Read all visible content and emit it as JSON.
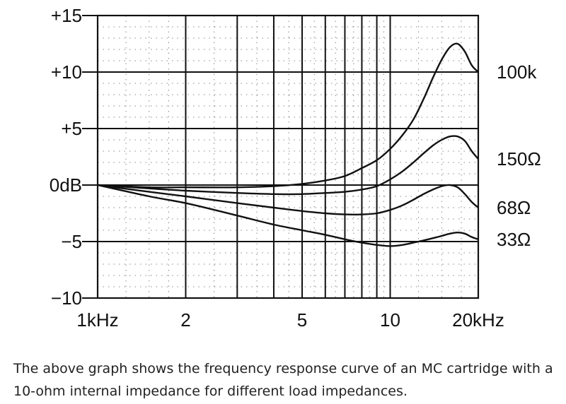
{
  "chart_data": {
    "type": "line",
    "x_scale": "log",
    "xlim": [
      1,
      20
    ],
    "ylim": [
      -10,
      15
    ],
    "x_ticks": [
      {
        "value": 1,
        "label": "1kHz"
      },
      {
        "value": 2,
        "label": "2"
      },
      {
        "value": 5,
        "label": "5"
      },
      {
        "value": 10,
        "label": "10"
      },
      {
        "value": 20,
        "label": "20kHz"
      }
    ],
    "y_ticks": [
      {
        "value": 15,
        "label": "+15"
      },
      {
        "value": 10,
        "label": "+10"
      },
      {
        "value": 5,
        "label": "+5"
      },
      {
        "value": 0,
        "label": "0dB"
      },
      {
        "value": -5,
        "label": "−5"
      },
      {
        "value": -10,
        "label": "−10"
      }
    ],
    "grid": true,
    "series": [
      {
        "name": "100k",
        "points": [
          [
            1,
            0
          ],
          [
            1.5,
            -0.2
          ],
          [
            2,
            -0.2
          ],
          [
            3,
            -0.2
          ],
          [
            4,
            -0.1
          ],
          [
            5,
            0.1
          ],
          [
            6,
            0.4
          ],
          [
            7,
            0.8
          ],
          [
            8,
            1.5
          ],
          [
            9,
            2.2
          ],
          [
            10,
            3.2
          ],
          [
            11,
            4.4
          ],
          [
            12,
            5.8
          ],
          [
            13,
            7.6
          ],
          [
            14,
            9.5
          ],
          [
            15,
            11.1
          ],
          [
            16,
            12.2
          ],
          [
            17,
            12.5
          ],
          [
            18,
            11.8
          ],
          [
            19,
            10.6
          ],
          [
            20,
            10
          ]
        ]
      },
      {
        "name": "150Ω",
        "points": [
          [
            1,
            0
          ],
          [
            1.5,
            -0.3
          ],
          [
            2,
            -0.5
          ],
          [
            3,
            -0.7
          ],
          [
            4,
            -0.8
          ],
          [
            5,
            -0.8
          ],
          [
            6,
            -0.7
          ],
          [
            7,
            -0.6
          ],
          [
            8,
            -0.4
          ],
          [
            9,
            -0.1
          ],
          [
            10,
            0.5
          ],
          [
            11,
            1.2
          ],
          [
            12,
            2.0
          ],
          [
            13,
            2.8
          ],
          [
            14,
            3.5
          ],
          [
            15,
            4.0
          ],
          [
            16,
            4.3
          ],
          [
            17,
            4.3
          ],
          [
            18,
            3.9
          ],
          [
            19,
            3.0
          ],
          [
            20,
            2.3
          ]
        ]
      },
      {
        "name": "68Ω",
        "points": [
          [
            1,
            0
          ],
          [
            1.5,
            -0.6
          ],
          [
            2,
            -1.0
          ],
          [
            3,
            -1.6
          ],
          [
            4,
            -2.0
          ],
          [
            5,
            -2.3
          ],
          [
            6,
            -2.5
          ],
          [
            7,
            -2.6
          ],
          [
            8,
            -2.6
          ],
          [
            9,
            -2.5
          ],
          [
            10,
            -2.2
          ],
          [
            11,
            -1.8
          ],
          [
            12,
            -1.3
          ],
          [
            13,
            -0.8
          ],
          [
            14,
            -0.4
          ],
          [
            15,
            -0.1
          ],
          [
            16,
            0
          ],
          [
            17,
            -0.2
          ],
          [
            18,
            -0.8
          ],
          [
            19,
            -1.5
          ],
          [
            20,
            -2.0
          ]
        ]
      },
      {
        "name": "33Ω",
        "points": [
          [
            1,
            0
          ],
          [
            1.5,
            -1.0
          ],
          [
            2,
            -1.6
          ],
          [
            3,
            -2.7
          ],
          [
            4,
            -3.5
          ],
          [
            5,
            -4.0
          ],
          [
            6,
            -4.4
          ],
          [
            7,
            -4.8
          ],
          [
            8,
            -5.1
          ],
          [
            9,
            -5.3
          ],
          [
            10,
            -5.4
          ],
          [
            11,
            -5.3
          ],
          [
            12,
            -5.1
          ],
          [
            13,
            -4.9
          ],
          [
            14,
            -4.7
          ],
          [
            15,
            -4.5
          ],
          [
            16,
            -4.3
          ],
          [
            17,
            -4.2
          ],
          [
            18,
            -4.3
          ],
          [
            19,
            -4.6
          ],
          [
            20,
            -4.8
          ]
        ]
      }
    ]
  },
  "caption": "The above graph shows the frequency response curve of an MC cartridge with a 10-ohm internal impedance for different load impedances."
}
